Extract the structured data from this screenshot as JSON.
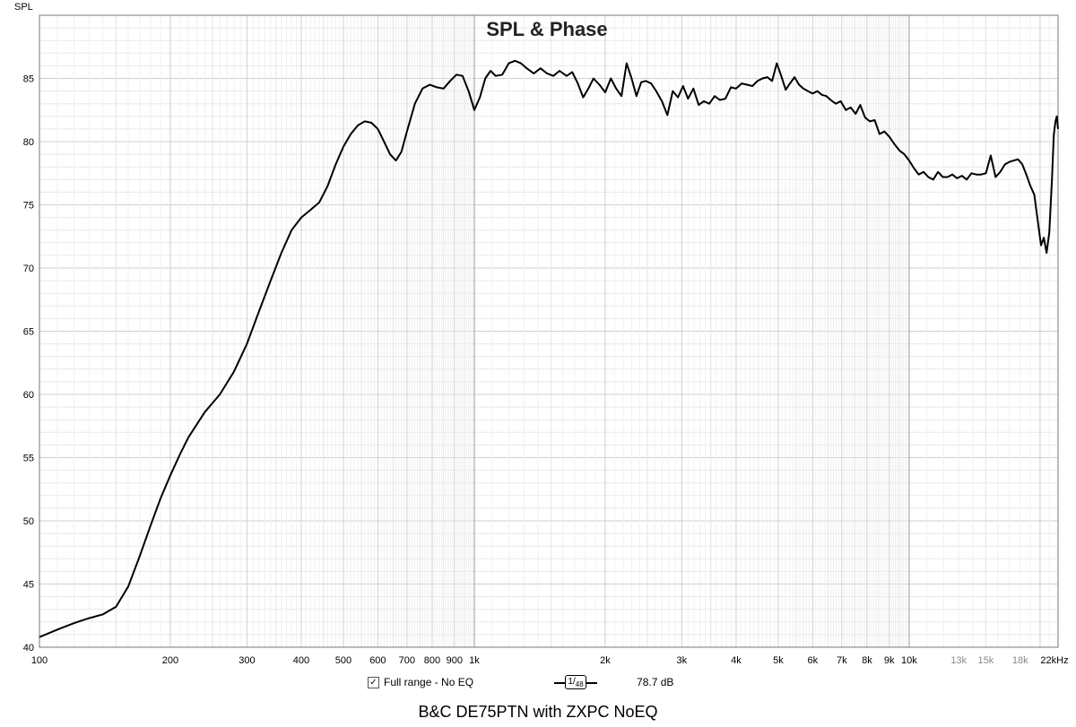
{
  "chart_data": {
    "type": "line",
    "title": "SPL & Phase",
    "ylabel": "SPL",
    "xlabel": "",
    "x_scale": "log",
    "xlim": [
      100,
      22000
    ],
    "ylim": [
      40,
      90
    ],
    "grid": true,
    "y_ticks": [
      40,
      45,
      50,
      55,
      60,
      65,
      70,
      75,
      80,
      85
    ],
    "y_tick_labels": [
      "40",
      "45",
      "50",
      "55",
      "60",
      "65",
      "70",
      "75",
      "80",
      "85"
    ],
    "x_ticks": [
      {
        "v": 100,
        "label": "100"
      },
      {
        "v": 200,
        "label": "200"
      },
      {
        "v": 300,
        "label": "300"
      },
      {
        "v": 400,
        "label": "400"
      },
      {
        "v": 500,
        "label": "500"
      },
      {
        "v": 600,
        "label": "600"
      },
      {
        "v": 700,
        "label": "700"
      },
      {
        "v": 800,
        "label": "800"
      },
      {
        "v": 900,
        "label": "900"
      },
      {
        "v": 1000,
        "label": "1k"
      },
      {
        "v": 2000,
        "label": "2k"
      },
      {
        "v": 3000,
        "label": "3k"
      },
      {
        "v": 4000,
        "label": "4k"
      },
      {
        "v": 5000,
        "label": "5k"
      },
      {
        "v": 6000,
        "label": "6k"
      },
      {
        "v": 7000,
        "label": "7k"
      },
      {
        "v": 8000,
        "label": "8k"
      },
      {
        "v": 9000,
        "label": "9k"
      },
      {
        "v": 10000,
        "label": "10k"
      },
      {
        "v": 13000,
        "label": "13k"
      },
      {
        "v": 15000,
        "label": "15k"
      },
      {
        "v": 18000,
        "label": "18k"
      },
      {
        "v": 22000,
        "label": "22kHz"
      }
    ],
    "series": [
      {
        "name": "Full range - No EQ",
        "color": "#000000",
        "points": [
          [
            100,
            40.8
          ],
          [
            110,
            41.4
          ],
          [
            120,
            41.9
          ],
          [
            130,
            42.3
          ],
          [
            140,
            42.6
          ],
          [
            150,
            43.2
          ],
          [
            160,
            44.8
          ],
          [
            170,
            47.2
          ],
          [
            180,
            49.6
          ],
          [
            190,
            51.8
          ],
          [
            200,
            53.6
          ],
          [
            210,
            55.2
          ],
          [
            220,
            56.6
          ],
          [
            240,
            58.6
          ],
          [
            260,
            60.0
          ],
          [
            280,
            61.8
          ],
          [
            300,
            64.0
          ],
          [
            320,
            66.6
          ],
          [
            340,
            69.0
          ],
          [
            360,
            71.2
          ],
          [
            380,
            73.0
          ],
          [
            400,
            74.0
          ],
          [
            420,
            74.6
          ],
          [
            440,
            75.2
          ],
          [
            460,
            76.5
          ],
          [
            480,
            78.2
          ],
          [
            500,
            79.6
          ],
          [
            520,
            80.6
          ],
          [
            540,
            81.3
          ],
          [
            560,
            81.6
          ],
          [
            580,
            81.5
          ],
          [
            600,
            81.0
          ],
          [
            620,
            80.0
          ],
          [
            640,
            79.0
          ],
          [
            660,
            78.5
          ],
          [
            680,
            79.2
          ],
          [
            700,
            80.8
          ],
          [
            730,
            83.0
          ],
          [
            760,
            84.2
          ],
          [
            790,
            84.5
          ],
          [
            820,
            84.3
          ],
          [
            850,
            84.2
          ],
          [
            880,
            84.8
          ],
          [
            910,
            85.3
          ],
          [
            940,
            85.2
          ],
          [
            970,
            84.0
          ],
          [
            1000,
            82.5
          ],
          [
            1030,
            83.5
          ],
          [
            1060,
            85.0
          ],
          [
            1090,
            85.6
          ],
          [
            1120,
            85.2
          ],
          [
            1160,
            85.3
          ],
          [
            1200,
            86.2
          ],
          [
            1240,
            86.4
          ],
          [
            1280,
            86.2
          ],
          [
            1320,
            85.8
          ],
          [
            1370,
            85.4
          ],
          [
            1420,
            85.8
          ],
          [
            1470,
            85.4
          ],
          [
            1520,
            85.2
          ],
          [
            1570,
            85.6
          ],
          [
            1630,
            85.2
          ],
          [
            1680,
            85.5
          ],
          [
            1730,
            84.6
          ],
          [
            1780,
            83.5
          ],
          [
            1830,
            84.2
          ],
          [
            1880,
            85.0
          ],
          [
            1940,
            84.5
          ],
          [
            2000,
            83.9
          ],
          [
            2060,
            85.0
          ],
          [
            2120,
            84.2
          ],
          [
            2180,
            83.6
          ],
          [
            2240,
            86.2
          ],
          [
            2300,
            85.0
          ],
          [
            2360,
            83.6
          ],
          [
            2420,
            84.7
          ],
          [
            2480,
            84.8
          ],
          [
            2550,
            84.6
          ],
          [
            2620,
            84.0
          ],
          [
            2700,
            83.2
          ],
          [
            2780,
            82.1
          ],
          [
            2860,
            84.0
          ],
          [
            2940,
            83.5
          ],
          [
            3020,
            84.4
          ],
          [
            3100,
            83.4
          ],
          [
            3190,
            84.2
          ],
          [
            3280,
            82.9
          ],
          [
            3370,
            83.2
          ],
          [
            3470,
            83.0
          ],
          [
            3570,
            83.6
          ],
          [
            3670,
            83.3
          ],
          [
            3780,
            83.4
          ],
          [
            3890,
            84.3
          ],
          [
            4000,
            84.2
          ],
          [
            4120,
            84.6
          ],
          [
            4240,
            84.5
          ],
          [
            4360,
            84.4
          ],
          [
            4480,
            84.8
          ],
          [
            4600,
            85.0
          ],
          [
            4720,
            85.1
          ],
          [
            4840,
            84.8
          ],
          [
            4960,
            86.2
          ],
          [
            5080,
            85.2
          ],
          [
            5200,
            84.1
          ],
          [
            5320,
            84.6
          ],
          [
            5450,
            85.1
          ],
          [
            5580,
            84.5
          ],
          [
            5710,
            84.2
          ],
          [
            5850,
            84.0
          ],
          [
            6000,
            83.8
          ],
          [
            6150,
            84.0
          ],
          [
            6300,
            83.7
          ],
          [
            6450,
            83.6
          ],
          [
            6600,
            83.3
          ],
          [
            6780,
            83.0
          ],
          [
            6960,
            83.2
          ],
          [
            7150,
            82.5
          ],
          [
            7340,
            82.7
          ],
          [
            7530,
            82.2
          ],
          [
            7720,
            82.9
          ],
          [
            7920,
            81.9
          ],
          [
            8120,
            81.6
          ],
          [
            8330,
            81.7
          ],
          [
            8550,
            80.6
          ],
          [
            8770,
            80.8
          ],
          [
            9000,
            80.4
          ],
          [
            9250,
            79.8
          ],
          [
            9500,
            79.3
          ],
          [
            9750,
            79.0
          ],
          [
            10000,
            78.5
          ],
          [
            10260,
            77.9
          ],
          [
            10520,
            77.4
          ],
          [
            10790,
            77.6
          ],
          [
            11070,
            77.2
          ],
          [
            11360,
            77.0
          ],
          [
            11650,
            77.6
          ],
          [
            11950,
            77.2
          ],
          [
            12250,
            77.2
          ],
          [
            12570,
            77.4
          ],
          [
            12890,
            77.1
          ],
          [
            13220,
            77.3
          ],
          [
            13560,
            77.0
          ],
          [
            13910,
            77.5
          ],
          [
            14270,
            77.4
          ],
          [
            14630,
            77.4
          ],
          [
            15010,
            77.5
          ],
          [
            15400,
            78.9
          ],
          [
            15800,
            77.2
          ],
          [
            16200,
            77.6
          ],
          [
            16600,
            78.2
          ],
          [
            17000,
            78.4
          ],
          [
            17400,
            78.5
          ],
          [
            17800,
            78.6
          ],
          [
            18200,
            78.2
          ],
          [
            18600,
            77.4
          ],
          [
            19000,
            76.5
          ],
          [
            19400,
            75.8
          ],
          [
            19800,
            73.5
          ],
          [
            20100,
            71.8
          ],
          [
            20400,
            72.4
          ],
          [
            20700,
            71.2
          ],
          [
            21000,
            72.8
          ],
          [
            21300,
            77.0
          ],
          [
            21500,
            80.5
          ],
          [
            21700,
            81.6
          ],
          [
            21850,
            82.0
          ],
          [
            22000,
            81.0
          ]
        ]
      }
    ]
  },
  "legend": {
    "checkbox_glyph": "✓",
    "series_name": "Full range - No EQ",
    "smoothing_numerator": "1",
    "smoothing_denominator": "48",
    "value": "78.7 dB"
  },
  "caption": "B&C DE75PTN with ZXPC NoEQ",
  "colors": {
    "background": "#ffffff",
    "minor_grid": "#dcdcdc",
    "major_grid": "#9a9a9a",
    "axis": "#777777",
    "trace": "#000000"
  }
}
